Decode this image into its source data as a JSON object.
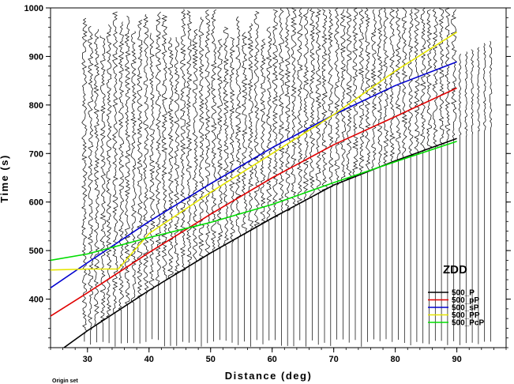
{
  "chart_data": {
    "type": "line",
    "subtype": "seismic record section with travel-time curves",
    "station": "ZDD",
    "xlabel": "Distance (deg)",
    "ylabel": "Time (s)",
    "xlim": [
      24,
      98
    ],
    "ylim": [
      300,
      1000
    ],
    "x_ticks": [
      30,
      40,
      50,
      60,
      70,
      80,
      90
    ],
    "y_ticks": [
      400,
      500,
      600,
      700,
      800,
      900,
      1000
    ],
    "footnote": "Origin set",
    "grid": false,
    "legend_position": "bottom-right",
    "trace_distances": {
      "start": 29.5,
      "end": 95.5,
      "step": 1
    },
    "series": [
      {
        "name": "500_P",
        "color": "#000000",
        "x": [
          24,
          30,
          40,
          50,
          60,
          70,
          80,
          90
        ],
        "y": [
          280,
          335,
          418,
          495,
          567,
          635,
          685,
          731
        ]
      },
      {
        "name": "500_pP",
        "color": "#e00000",
        "x": [
          24,
          30,
          40,
          50,
          60,
          70,
          80,
          90
        ],
        "y": [
          365,
          413,
          496,
          575,
          650,
          718,
          776,
          835
        ]
      },
      {
        "name": "500_sP",
        "color": "#0000d0",
        "x": [
          24,
          30,
          40,
          50,
          60,
          70,
          80,
          90
        ],
        "y": [
          423,
          475,
          560,
          638,
          712,
          780,
          840,
          889
        ]
      },
      {
        "name": "500_PP",
        "color": "#e6e600",
        "x": [
          24,
          30,
          35,
          40,
          50,
          60,
          70,
          80,
          90
        ],
        "y": [
          460,
          462,
          462,
          535,
          620,
          700,
          780,
          870,
          950
        ]
      },
      {
        "name": "500_PcP",
        "color": "#00dd00",
        "x": [
          24,
          30,
          40,
          50,
          60,
          70,
          80,
          90
        ],
        "y": [
          480,
          493,
          527,
          558,
          595,
          640,
          683,
          725
        ]
      }
    ]
  }
}
